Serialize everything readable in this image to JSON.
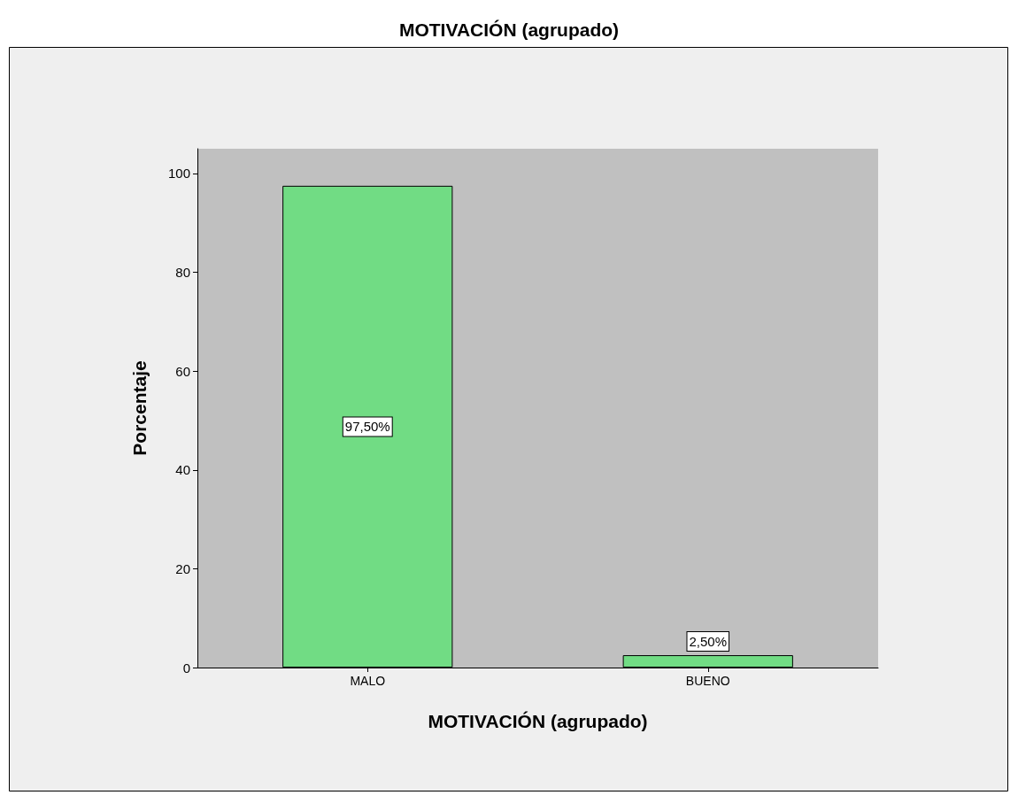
{
  "chart_data": {
    "type": "bar",
    "title": "MOTIVACIÓN (agrupado)",
    "xlabel": "MOTIVACIÓN (agrupado)",
    "ylabel": "Porcentaje",
    "categories": [
      "MALO",
      "BUENO"
    ],
    "values": [
      97.5,
      2.5
    ],
    "value_labels": [
      "97,50%",
      "2,50%"
    ],
    "color": "#71dc84",
    "ylim": [
      0,
      105
    ],
    "yticks": [
      0,
      20,
      40,
      60,
      80,
      100
    ],
    "grid": false
  }
}
